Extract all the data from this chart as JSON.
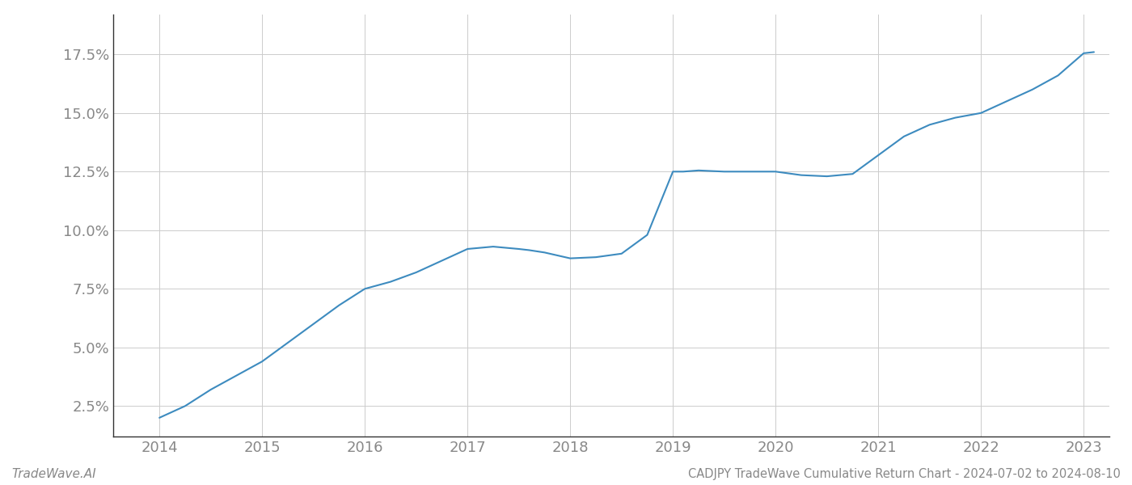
{
  "x_years": [
    2014.0,
    2014.25,
    2014.5,
    2014.75,
    2015.0,
    2015.25,
    2015.5,
    2015.75,
    2016.0,
    2016.25,
    2016.5,
    2016.75,
    2017.0,
    2017.25,
    2017.5,
    2017.6,
    2017.75,
    2018.0,
    2018.25,
    2018.5,
    2018.75,
    2019.0,
    2019.1,
    2019.25,
    2019.5,
    2019.75,
    2020.0,
    2020.25,
    2020.5,
    2020.75,
    2021.0,
    2021.25,
    2021.5,
    2021.75,
    2022.0,
    2022.25,
    2022.5,
    2022.75,
    2023.0,
    2023.1
  ],
  "y_values": [
    2.0,
    2.5,
    3.2,
    3.8,
    4.4,
    5.2,
    6.0,
    6.8,
    7.5,
    7.8,
    8.2,
    8.7,
    9.2,
    9.3,
    9.2,
    9.15,
    9.05,
    8.8,
    8.85,
    9.0,
    9.8,
    12.5,
    12.5,
    12.55,
    12.5,
    12.5,
    12.5,
    12.35,
    12.3,
    12.4,
    13.2,
    14.0,
    14.5,
    14.8,
    15.0,
    15.5,
    16.0,
    16.6,
    17.55,
    17.6
  ],
  "line_color": "#3d8bbf",
  "line_width": 1.5,
  "background_color": "#ffffff",
  "grid_color": "#cccccc",
  "title": "CADJPY TradeWave Cumulative Return Chart - 2024-07-02 to 2024-08-10",
  "watermark": "TradeWave.AI",
  "x_tick_labels": [
    "2014",
    "2015",
    "2016",
    "2017",
    "2018",
    "2019",
    "2020",
    "2021",
    "2022",
    "2023"
  ],
  "x_tick_positions": [
    2014,
    2015,
    2016,
    2017,
    2018,
    2019,
    2020,
    2021,
    2022,
    2023
  ],
  "y_ticks": [
    2.5,
    5.0,
    7.5,
    10.0,
    12.5,
    15.0,
    17.5
  ],
  "xlim": [
    2013.55,
    2023.25
  ],
  "ylim": [
    1.2,
    19.2
  ],
  "tick_label_color": "#888888",
  "axis_color": "#333333",
  "title_fontsize": 10.5,
  "watermark_fontsize": 11,
  "tick_fontsize": 13
}
